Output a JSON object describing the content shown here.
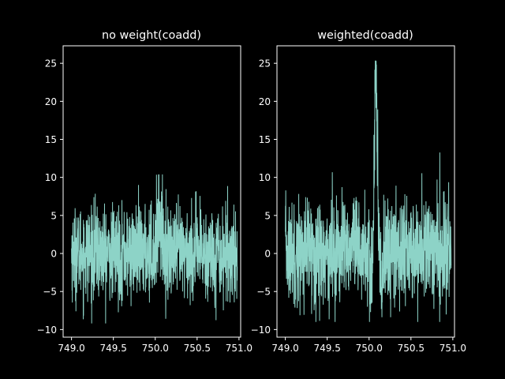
{
  "chart_data": [
    {
      "type": "line",
      "title": "no weight(coadd)",
      "xlabel": "",
      "ylabel": "",
      "xlim": [
        748.9,
        751.02
      ],
      "ylim": [
        -11.0,
        27.3
      ],
      "xticks": [
        749.0,
        749.5,
        750.0,
        750.5,
        751.0
      ],
      "xtick_labels": [
        "749.0",
        "749.5",
        "750.0",
        "750.5",
        "751.0"
      ],
      "yticks": [
        -10,
        -5,
        0,
        5,
        10,
        15,
        20,
        25
      ],
      "ytick_labels": [
        "−10",
        "−5",
        "0",
        "5",
        "10",
        "15",
        "20",
        "25"
      ],
      "grid": false,
      "series": [
        {
          "color": "#8dd3c7",
          "x_start": 749.0,
          "x_end": 750.98,
          "noise_band": [
            -5.5,
            5.5
          ],
          "extreme_min": -9.2,
          "extreme_max": 10.4,
          "features": [
            {
              "x_from": 750.0,
              "x_to": 750.1,
              "shape": "bump",
              "peak_y": 10.4
            }
          ]
        }
      ]
    },
    {
      "type": "line",
      "title": "weighted(coadd)",
      "xlabel": "",
      "ylabel": "",
      "xlim": [
        748.9,
        751.02
      ],
      "ylim": [
        -11.0,
        27.3
      ],
      "xticks": [
        749.0,
        749.5,
        750.0,
        750.5,
        751.0
      ],
      "xtick_labels": [
        "749.0",
        "749.5",
        "750.0",
        "750.5",
        "751.0"
      ],
      "yticks": [
        -10,
        -5,
        0,
        5,
        10,
        15,
        20,
        25
      ],
      "ytick_labels": [
        "−10",
        "−5",
        "0",
        "5",
        "10",
        "15",
        "20",
        "25"
      ],
      "grid": false,
      "series": [
        {
          "color": "#8dd3c7",
          "x_start": 749.0,
          "x_end": 750.98,
          "noise_band": [
            -6.0,
            6.5
          ],
          "extreme_min": -9.0,
          "extreme_max": 25.3,
          "features": [
            {
              "x_from": 750.04,
              "x_to": 750.12,
              "shape": "emission-peak",
              "peak_y": 25.3
            }
          ]
        }
      ]
    }
  ]
}
